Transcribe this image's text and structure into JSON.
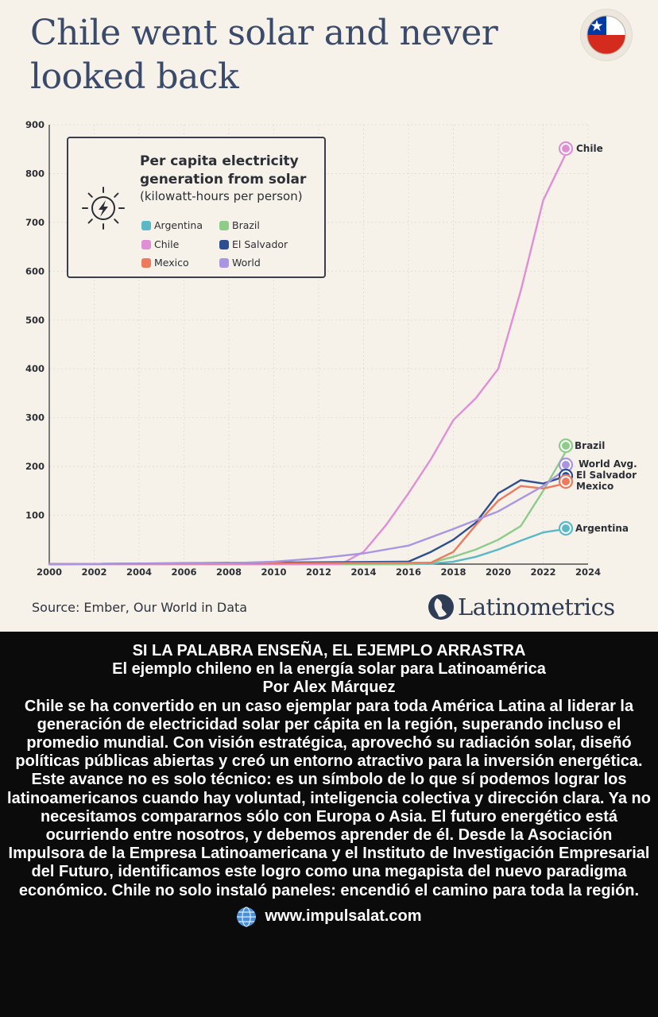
{
  "card": {
    "headline": "Chile went solar and never looked back",
    "source": "Source: Ember, Our World in Data",
    "brand": "Latinometrics",
    "flag_icon": "chile-flag-icon",
    "brand_icon": "latinometrics-logo-icon"
  },
  "legend": {
    "title": "Per capita electricity generation from solar",
    "subtitle": "(kilowatt-hours per person)",
    "icon": "sun-bolt-icon",
    "items": [
      {
        "label": "Argentina",
        "color": "#5bb8c7"
      },
      {
        "label": "Brazil",
        "color": "#8ecc8a"
      },
      {
        "label": "Chile",
        "color": "#e08fd6"
      },
      {
        "label": "El Salvador",
        "color": "#2e4f8f"
      },
      {
        "label": "Mexico",
        "color": "#ec7a5c"
      },
      {
        "label": "World",
        "color": "#a995e3"
      }
    ]
  },
  "chart_data": {
    "type": "line",
    "title": "Per capita electricity generation from solar",
    "subtitle": "(kilowatt-hours per person)",
    "xlabel": "",
    "ylabel": "",
    "xlim": [
      2000,
      2024
    ],
    "ylim": [
      0,
      900
    ],
    "x_ticks": [
      2000,
      2002,
      2004,
      2006,
      2008,
      2010,
      2012,
      2014,
      2016,
      2018,
      2020,
      2022,
      2024
    ],
    "y_ticks": [
      100,
      200,
      300,
      400,
      500,
      600,
      700,
      800,
      900
    ],
    "grid": true,
    "legend_position": "top-left",
    "series": [
      {
        "name": "Argentina",
        "end_label": "Argentina",
        "color": "#5bb8c7",
        "x": [
          2000,
          2016,
          2017,
          2018,
          2019,
          2020,
          2021,
          2022,
          2023
        ],
        "y": [
          0,
          0,
          1,
          5,
          15,
          30,
          48,
          65,
          72
        ]
      },
      {
        "name": "Brazil",
        "end_label": "Brazil",
        "color": "#8ecc8a",
        "x": [
          2000,
          2016,
          2017,
          2018,
          2019,
          2020,
          2021,
          2022,
          2023
        ],
        "y": [
          0,
          0,
          3,
          15,
          30,
          50,
          78,
          150,
          230
        ]
      },
      {
        "name": "Chile",
        "end_label": "Chile",
        "color": "#e08fd6",
        "x": [
          2000,
          2013,
          2014,
          2015,
          2016,
          2017,
          2018,
          2019,
          2020,
          2021,
          2022,
          2023
        ],
        "y": [
          0,
          0,
          25,
          80,
          145,
          215,
          295,
          340,
          400,
          560,
          745,
          840
        ]
      },
      {
        "name": "El Salvador",
        "end_label": "El Salvador",
        "color": "#2e4f8f",
        "x": [
          2000,
          2016,
          2017,
          2018,
          2019,
          2020,
          2021,
          2022,
          2023
        ],
        "y": [
          0,
          5,
          25,
          50,
          85,
          145,
          172,
          165,
          180
        ]
      },
      {
        "name": "Mexico",
        "end_label": "Mexico",
        "color": "#ec7a5c",
        "x": [
          2000,
          2017,
          2018,
          2019,
          2020,
          2021,
          2022,
          2023
        ],
        "y": [
          0,
          3,
          25,
          80,
          130,
          160,
          155,
          165
        ]
      },
      {
        "name": "World",
        "end_label": "World Avg.",
        "color": "#a995e3",
        "x": [
          2000,
          2008,
          2010,
          2012,
          2014,
          2016,
          2018,
          2020,
          2022,
          2023
        ],
        "y": [
          0,
          2,
          5,
          12,
          22,
          38,
          72,
          108,
          160,
          195
        ]
      }
    ]
  },
  "article": {
    "heading": "SI LA PALABRA ENSEÑA, EL EJEMPLO ARRASTRA",
    "subheading": "El ejemplo chileno en la energía solar para Latinoamérica",
    "byline": "Por Alex Márquez",
    "body": "Chile se ha convertido en un caso ejemplar para toda América Latina al liderar la generación de electricidad solar per cápita en la región, superando incluso el promedio mundial. Con visión estratégica, aprovechó su radiación solar, diseñó políticas públicas abiertas y creó un entorno atractivo para la inversión energética. Este avance no es solo técnico: es un símbolo de lo que sí podemos lograr los latinoamericanos cuando hay voluntad, inteligencia colectiva y dirección clara. Ya no necesitamos compararnos sólo con Europa o Asia. El futuro energético está ocurriendo entre nosotros, y debemos aprender de él. Desde la Asociación Impulsora de la Empresa Latinoamericana y el Instituto de Investigación Empresarial del Futuro, identificamos este logro como una megapista del nuevo paradigma económico. Chile no solo instaló paneles: encendió el camino para toda la región.",
    "website": "www.impulsalat.com",
    "website_icon": "globe-icon"
  }
}
